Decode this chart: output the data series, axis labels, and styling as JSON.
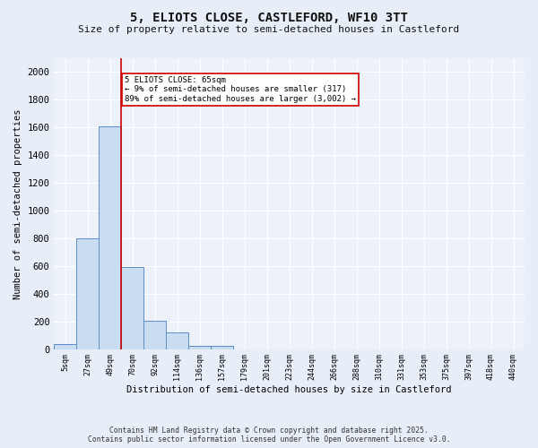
{
  "title": "5, ELIOTS CLOSE, CASTLEFORD, WF10 3TT",
  "subtitle": "Size of property relative to semi-detached houses in Castleford",
  "xlabel": "Distribution of semi-detached houses by size in Castleford",
  "ylabel": "Number of semi-detached properties",
  "bar_labels": [
    "5sqm",
    "27sqm",
    "49sqm",
    "70sqm",
    "92sqm",
    "114sqm",
    "136sqm",
    "157sqm",
    "179sqm",
    "201sqm",
    "223sqm",
    "244sqm",
    "266sqm",
    "288sqm",
    "310sqm",
    "331sqm",
    "353sqm",
    "375sqm",
    "397sqm",
    "418sqm",
    "440sqm"
  ],
  "bar_values": [
    35,
    800,
    1610,
    595,
    205,
    120,
    25,
    20,
    0,
    0,
    0,
    0,
    0,
    0,
    0,
    0,
    0,
    0,
    0,
    0,
    0
  ],
  "bar_color": "#c9ddf2",
  "bar_edge_color": "#5b8ec4",
  "vline_x": 2.5,
  "vline_color": "#cc0000",
  "annotation_title": "5 ELIOTS CLOSE: 65sqm",
  "annotation_line1": "← 9% of semi-detached houses are smaller (317)",
  "annotation_line2": "89% of semi-detached houses are larger (3,002) →",
  "annotation_box_color": "#cc0000",
  "ylim": [
    0,
    2100
  ],
  "yticks": [
    0,
    200,
    400,
    600,
    800,
    1000,
    1200,
    1400,
    1600,
    1800,
    2000
  ],
  "footer_line1": "Contains HM Land Registry data © Crown copyright and database right 2025.",
  "footer_line2": "Contains public sector information licensed under the Open Government Licence v3.0.",
  "bg_color": "#e8eef8",
  "plot_bg_color": "#edf2fa"
}
